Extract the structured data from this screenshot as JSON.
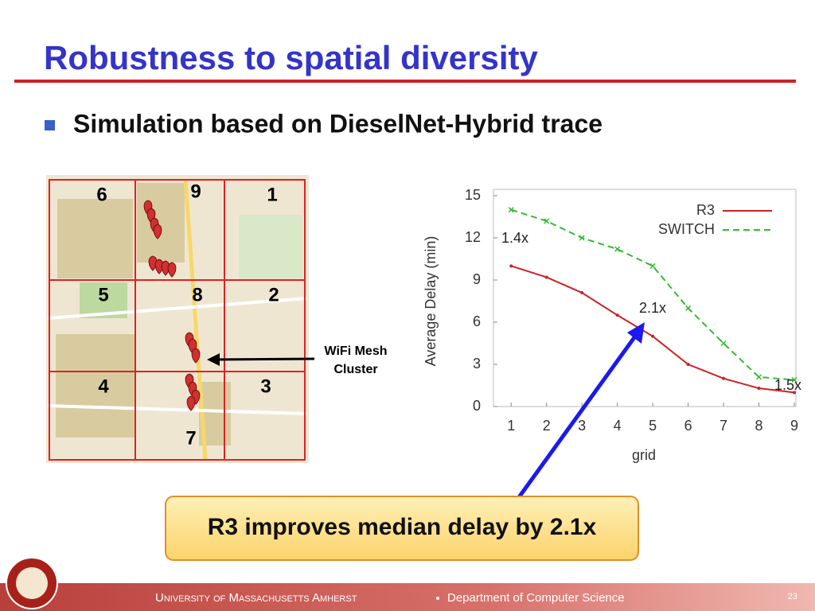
{
  "title": "Robustness to spatial diversity",
  "bullet": "Simulation based on DieselNet-Hybrid trace",
  "map": {
    "grid_labels": [
      "6",
      "9",
      "1",
      "5",
      "8",
      "2",
      "4",
      "3",
      "7"
    ],
    "annotation": [
      "WiFi Mesh",
      "Cluster"
    ]
  },
  "chart_data": {
    "type": "line",
    "xlabel": "grid",
    "ylabel": "Average Delay (min)",
    "x": [
      1,
      2,
      3,
      4,
      5,
      6,
      7,
      8,
      9
    ],
    "xlim": [
      0.5,
      9
    ],
    "xticks": [
      1,
      2,
      3,
      4,
      5,
      6,
      7,
      8,
      9
    ],
    "ylim": [
      0,
      15
    ],
    "yticks": [
      0,
      3,
      6,
      9,
      12,
      15
    ],
    "grid": false,
    "legend": "upper right",
    "series": [
      {
        "name": "R3",
        "color": "#cc2222",
        "style": "solid",
        "marker": "dot",
        "values": [
          10,
          9.2,
          8.1,
          6.5,
          5,
          3,
          2,
          1.3,
          1
        ]
      },
      {
        "name": "SWITCH",
        "color": "#33bb33",
        "style": "dashed",
        "marker": "x",
        "values": [
          14,
          13.2,
          12,
          11.2,
          10,
          7,
          4.5,
          2.1,
          1.9
        ]
      }
    ],
    "annotations": [
      "1.4x",
      "2.1x",
      "1.5x"
    ]
  },
  "callout": "R3 improves median delay by 2.1x",
  "footer": {
    "university": "University of Massachusetts Amherst",
    "department": "Department of Computer Science",
    "page": "23"
  }
}
